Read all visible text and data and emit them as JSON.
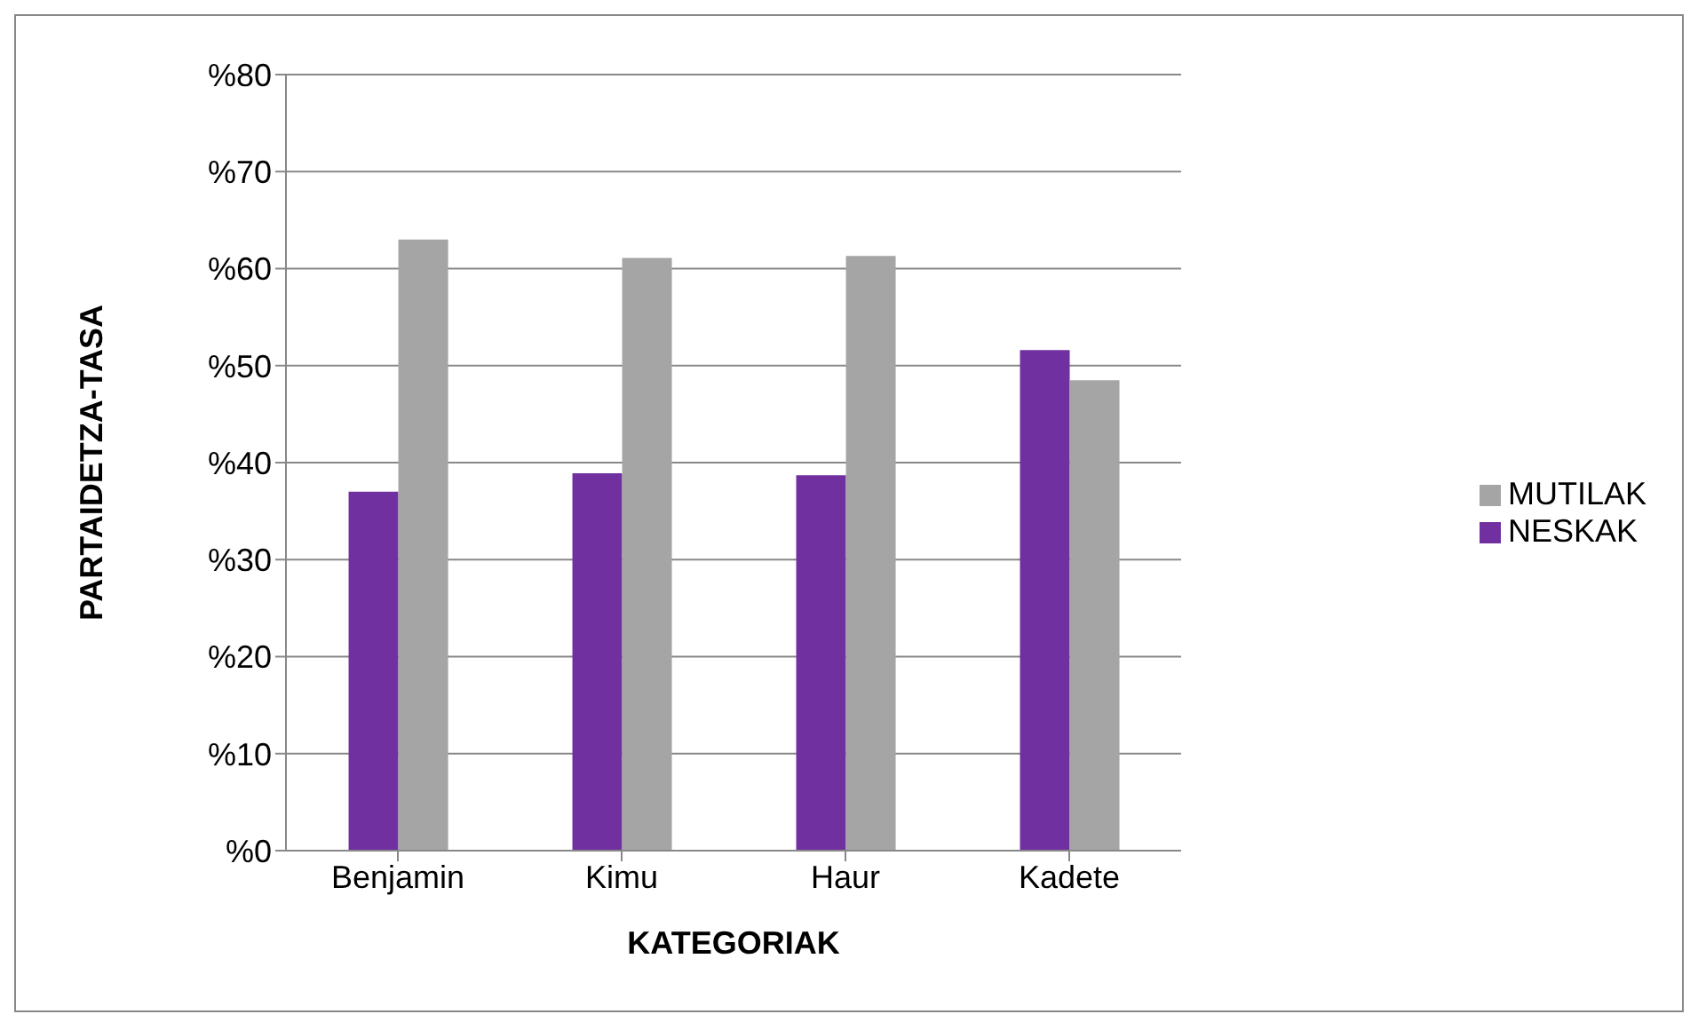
{
  "chart_data": {
    "type": "bar",
    "xlabel": "KATEGORIAK",
    "ylabel": "PARTAIDETZA-TASA",
    "categories": [
      "Benjamin",
      "Kimu",
      "Haur",
      "Kadete"
    ],
    "series": [
      {
        "name": "NESKAK",
        "color": "#7030a0",
        "values": [
          37.0,
          38.9,
          38.7,
          51.6
        ]
      },
      {
        "name": "MUTILAK",
        "color": "#a5a5a5",
        "values": [
          63.0,
          61.1,
          61.3,
          48.5
        ]
      }
    ],
    "ylim": [
      0,
      80
    ],
    "yticks": [
      {
        "value": 0,
        "label": "%0"
      },
      {
        "value": 10,
        "label": "%10"
      },
      {
        "value": 20,
        "label": "%20"
      },
      {
        "value": 30,
        "label": "%30"
      },
      {
        "value": 40,
        "label": "%40"
      },
      {
        "value": 50,
        "label": "%50"
      },
      {
        "value": 60,
        "label": "%60"
      },
      {
        "value": 70,
        "label": "%70"
      },
      {
        "value": 80,
        "label": "%80"
      }
    ],
    "grid": "y",
    "legend": "right"
  }
}
